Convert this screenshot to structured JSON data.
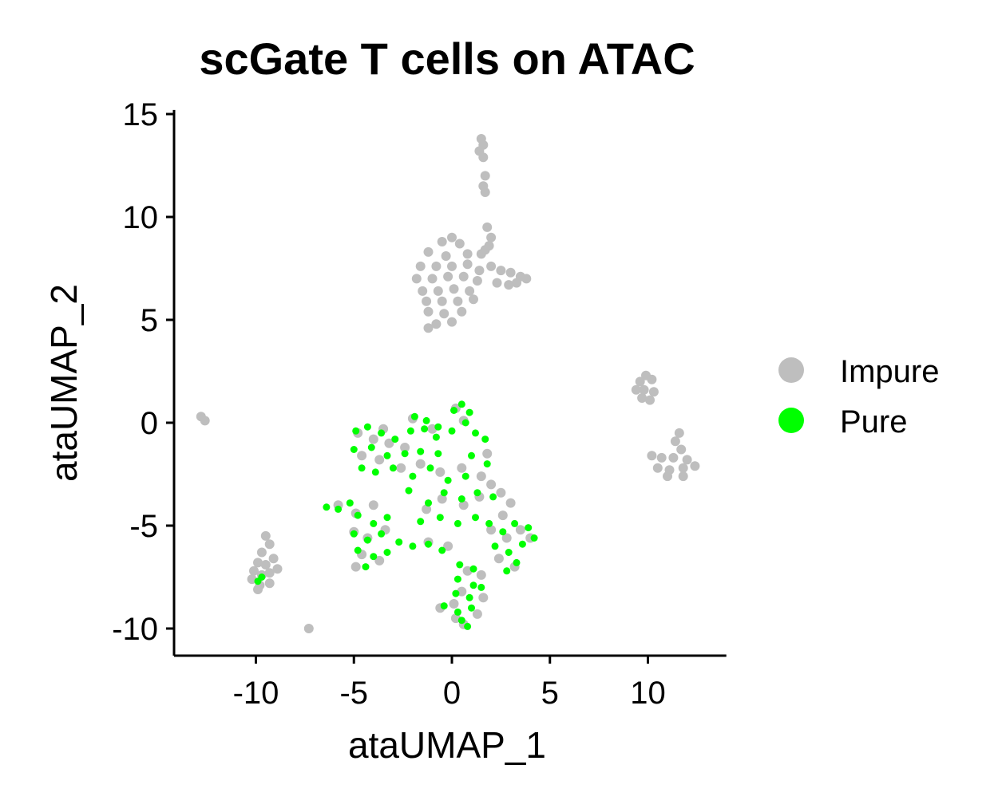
{
  "chart_data": {
    "type": "scatter",
    "title": "scGate T cells on ATAC",
    "xlabel": "ataUMAP_1",
    "ylabel": "ataUMAP_2",
    "xlim": [
      -14,
      14
    ],
    "ylim": [
      -11.2,
      15.2
    ],
    "xticks": [
      -10,
      -5,
      0,
      5,
      10
    ],
    "xtick_labels": [
      "-10",
      "-5",
      "0",
      "5",
      "10"
    ],
    "yticks": [
      -10,
      -5,
      0,
      5,
      10,
      15
    ],
    "ytick_labels": [
      "-10",
      "-5",
      "0",
      "5",
      "10",
      "15"
    ],
    "legend_position": "right",
    "grid": false,
    "series": [
      {
        "name": "Impure",
        "color": "#BEBEBE",
        "points": [
          [
            1.5,
            13.8
          ],
          [
            1.6,
            13.5
          ],
          [
            1.4,
            13.2
          ],
          [
            1.6,
            12.9
          ],
          [
            1.7,
            12.0
          ],
          [
            1.6,
            11.5
          ],
          [
            1.7,
            11.2
          ],
          [
            1.8,
            9.5
          ],
          [
            2.0,
            9.0
          ],
          [
            1.9,
            8.6
          ],
          [
            1.7,
            8.4
          ],
          [
            1.5,
            8.2
          ],
          [
            -0.5,
            8.8
          ],
          [
            0.0,
            9.0
          ],
          [
            0.4,
            8.7
          ],
          [
            -1.2,
            8.3
          ],
          [
            -0.3,
            8.1
          ],
          [
            0.8,
            8.2
          ],
          [
            -1.6,
            7.6
          ],
          [
            -0.8,
            7.6
          ],
          [
            0.0,
            7.6
          ],
          [
            0.8,
            7.7
          ],
          [
            1.4,
            7.4
          ],
          [
            -1.8,
            7.0
          ],
          [
            -1.0,
            7.0
          ],
          [
            -0.2,
            7.1
          ],
          [
            0.6,
            7.1
          ],
          [
            1.3,
            6.9
          ],
          [
            -1.5,
            6.4
          ],
          [
            -0.7,
            6.4
          ],
          [
            0.1,
            6.5
          ],
          [
            0.9,
            6.4
          ],
          [
            -1.3,
            5.9
          ],
          [
            -0.5,
            5.9
          ],
          [
            0.3,
            5.9
          ],
          [
            1.1,
            6.0
          ],
          [
            -1.2,
            5.4
          ],
          [
            -0.4,
            5.3
          ],
          [
            0.5,
            5.4
          ],
          [
            -0.8,
            4.8
          ],
          [
            0.0,
            4.9
          ],
          [
            -1.2,
            4.6
          ],
          [
            2.0,
            7.6
          ],
          [
            2.5,
            7.4
          ],
          [
            3.0,
            7.3
          ],
          [
            3.5,
            7.1
          ],
          [
            3.8,
            7.0
          ],
          [
            2.3,
            6.8
          ],
          [
            2.9,
            6.7
          ],
          [
            3.3,
            6.8
          ],
          [
            -12.8,
            0.3
          ],
          [
            -12.6,
            0.1
          ],
          [
            -7.3,
            -10.0
          ],
          [
            -9.5,
            -5.5
          ],
          [
            -9.3,
            -5.9
          ],
          [
            -9.7,
            -6.3
          ],
          [
            -9.9,
            -6.8
          ],
          [
            -9.5,
            -6.9
          ],
          [
            -9.1,
            -6.6
          ],
          [
            -10.1,
            -7.2
          ],
          [
            -9.7,
            -7.4
          ],
          [
            -9.3,
            -7.3
          ],
          [
            -8.9,
            -7.1
          ],
          [
            -10.2,
            -7.6
          ],
          [
            -9.8,
            -7.9
          ],
          [
            -9.3,
            -7.8
          ],
          [
            -9.9,
            -8.1
          ],
          [
            9.6,
            2.0
          ],
          [
            9.9,
            2.3
          ],
          [
            10.2,
            2.1
          ],
          [
            9.4,
            1.6
          ],
          [
            9.8,
            1.6
          ],
          [
            10.3,
            1.5
          ],
          [
            9.7,
            1.2
          ],
          [
            10.1,
            1.1
          ],
          [
            11.6,
            -0.5
          ],
          [
            11.4,
            -0.9
          ],
          [
            11.7,
            -1.3
          ],
          [
            10.2,
            -1.6
          ],
          [
            10.7,
            -1.7
          ],
          [
            11.3,
            -1.7
          ],
          [
            12.0,
            -1.8
          ],
          [
            10.5,
            -2.2
          ],
          [
            11.1,
            -2.3
          ],
          [
            11.8,
            -2.2
          ],
          [
            12.4,
            -2.1
          ],
          [
            11.0,
            -2.6
          ],
          [
            11.8,
            -2.6
          ],
          [
            -4.8,
            -0.5
          ],
          [
            -4.0,
            -0.8
          ],
          [
            -3.2,
            -1.0
          ],
          [
            -2.4,
            -1.2
          ],
          [
            -4.6,
            -1.6
          ],
          [
            -3.7,
            -1.8
          ],
          [
            -2.6,
            -2.2
          ],
          [
            -1.6,
            -2.0
          ],
          [
            -0.6,
            -2.4
          ],
          [
            0.5,
            -2.2
          ],
          [
            1.5,
            -2.6
          ],
          [
            1.8,
            -1.5
          ],
          [
            2.0,
            -3.0
          ],
          [
            2.5,
            -3.4
          ],
          [
            3.0,
            -3.9
          ],
          [
            2.6,
            -4.5
          ],
          [
            1.4,
            -3.6
          ],
          [
            0.6,
            -4.0
          ],
          [
            -0.5,
            -3.7
          ],
          [
            -1.3,
            -4.2
          ],
          [
            -4.0,
            -4.0
          ],
          [
            -4.9,
            -4.4
          ],
          [
            -5.0,
            -5.3
          ],
          [
            -4.3,
            -5.6
          ],
          [
            -3.4,
            -5.2
          ],
          [
            -4.6,
            -6.4
          ],
          [
            -3.7,
            -6.7
          ],
          [
            -4.9,
            -7.0
          ],
          [
            -1.2,
            -5.8
          ],
          [
            -0.2,
            -6.0
          ],
          [
            2.0,
            -5.2
          ],
          [
            2.8,
            -5.6
          ],
          [
            3.5,
            -5.2
          ],
          [
            4.0,
            -5.6
          ],
          [
            2.4,
            -6.6
          ],
          [
            3.2,
            -7.0
          ],
          [
            1.5,
            -7.4
          ],
          [
            0.8,
            -7.2
          ],
          [
            0.5,
            -8.2
          ],
          [
            0.1,
            -8.8
          ],
          [
            -0.6,
            -9.0
          ],
          [
            0.2,
            -9.5
          ],
          [
            1.3,
            -9.3
          ],
          [
            0.6,
            -9.8
          ],
          [
            1.6,
            -8.5
          ],
          [
            -5.8,
            -4.0
          ],
          [
            0.2,
            0.7
          ],
          [
            0.6,
            0.1
          ],
          [
            -2.0,
            0.2
          ],
          [
            -1.0,
            -0.3
          ],
          [
            -3.5,
            -0.3
          ]
        ]
      },
      {
        "name": "Pure",
        "color": "#00FF00",
        "points": [
          [
            -4.9,
            -0.4
          ],
          [
            -4.3,
            -0.2
          ],
          [
            -3.6,
            -0.5
          ],
          [
            -2.9,
            -0.8
          ],
          [
            -2.1,
            -0.4
          ],
          [
            -1.4,
            -0.3
          ],
          [
            -0.8,
            -0.7
          ],
          [
            -5.0,
            -1.3
          ],
          [
            -4.1,
            -1.2
          ],
          [
            -3.3,
            -1.6
          ],
          [
            -2.4,
            -1.5
          ],
          [
            -1.6,
            -1.4
          ],
          [
            -0.7,
            -1.5
          ],
          [
            -4.6,
            -2.2
          ],
          [
            -3.9,
            -2.4
          ],
          [
            -3.0,
            -2.2
          ],
          [
            -2.0,
            -2.6
          ],
          [
            -1.1,
            -2.2
          ],
          [
            -0.2,
            -2.8
          ],
          [
            0.7,
            -2.6
          ],
          [
            -1.9,
            0.3
          ],
          [
            -1.3,
            0.1
          ],
          [
            -0.7,
            -0.2
          ],
          [
            0.0,
            -0.4
          ],
          [
            0.1,
            0.6
          ],
          [
            0.5,
            0.9
          ],
          [
            0.9,
            0.5
          ],
          [
            0.7,
            0.0
          ],
          [
            1.2,
            -0.5
          ],
          [
            1.7,
            -0.8
          ],
          [
            1.0,
            -1.6
          ],
          [
            1.8,
            -2.0
          ],
          [
            -0.4,
            -3.4
          ],
          [
            0.5,
            -3.7
          ],
          [
            1.3,
            -3.4
          ],
          [
            2.1,
            -3.6
          ],
          [
            -1.2,
            -3.9
          ],
          [
            -0.6,
            -4.6
          ],
          [
            0.3,
            -4.9
          ],
          [
            1.2,
            -4.6
          ],
          [
            1.9,
            -4.9
          ],
          [
            2.6,
            -5.3
          ],
          [
            3.2,
            -4.9
          ],
          [
            3.9,
            -5.1
          ],
          [
            4.2,
            -5.6
          ],
          [
            3.6,
            -5.9
          ],
          [
            2.9,
            -6.3
          ],
          [
            2.2,
            -6.0
          ],
          [
            3.3,
            -6.8
          ],
          [
            2.8,
            -7.2
          ],
          [
            -5.8,
            -4.2
          ],
          [
            -6.4,
            -4.1
          ],
          [
            -5.2,
            -3.9
          ],
          [
            -4.8,
            -4.5
          ],
          [
            -4.0,
            -4.9
          ],
          [
            -3.3,
            -4.6
          ],
          [
            -5.0,
            -5.4
          ],
          [
            -4.3,
            -5.7
          ],
          [
            -3.6,
            -5.4
          ],
          [
            -4.8,
            -6.2
          ],
          [
            -4.0,
            -6.5
          ],
          [
            -3.3,
            -6.3
          ],
          [
            -4.4,
            -7.0
          ],
          [
            -2.7,
            -5.8
          ],
          [
            -2.0,
            -6.0
          ],
          [
            -1.2,
            -5.9
          ],
          [
            -0.5,
            -6.2
          ],
          [
            0.4,
            -6.9
          ],
          [
            1.1,
            -7.1
          ],
          [
            0.3,
            -7.6
          ],
          [
            1.1,
            -7.9
          ],
          [
            0.2,
            -8.3
          ],
          [
            0.9,
            -8.5
          ],
          [
            1.5,
            -8.0
          ],
          [
            -0.4,
            -8.9
          ],
          [
            0.3,
            -9.2
          ],
          [
            1.0,
            -9.0
          ],
          [
            0.5,
            -9.6
          ],
          [
            0.8,
            -9.9
          ],
          [
            -9.7,
            -7.5
          ],
          [
            -9.9,
            -7.7
          ],
          [
            -1.6,
            -4.8
          ],
          [
            -2.2,
            -3.3
          ]
        ]
      }
    ]
  }
}
